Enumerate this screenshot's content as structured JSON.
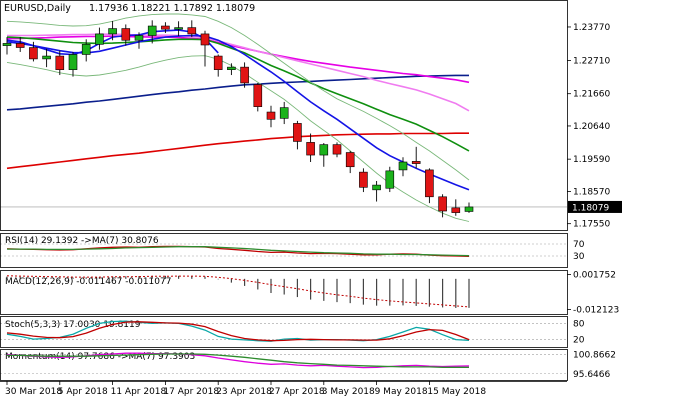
{
  "chart_data": [
    {
      "type": "candlestick",
      "symbol_label": "EURUSD,Daily",
      "ohlc_label": "1.17936 1.18221 1.17892 1.18079",
      "price_tick_labels": [
        "1.23770",
        "1.22710",
        "1.21660",
        "1.20640",
        "1.19590",
        "1.18570",
        "1.17550"
      ],
      "price_ticks": [
        1.2377,
        1.2271,
        1.2166,
        1.2064,
        1.1959,
        1.1857,
        1.1755
      ],
      "current_price_label": "1.18079",
      "current_price": 1.18079,
      "ylim": [
        1.1735,
        1.2418
      ],
      "date_labels": [
        "30 Mar 2018",
        "5 Apr 2018",
        "11 Apr 2018",
        "17 Apr 2018",
        "23 Apr 2018",
        "27 Apr 2018",
        "3 May 2018",
        "9 May 2018",
        "15 May 2018"
      ],
      "date_label_bar_index": [
        0,
        4,
        8,
        12,
        16,
        20,
        24,
        28,
        32
      ],
      "candles": [
        {
          "o": 1.2318,
          "h": 1.2345,
          "l": 1.229,
          "c": 1.2325
        },
        {
          "o": 1.2325,
          "h": 1.2345,
          "l": 1.2298,
          "c": 1.2312
        },
        {
          "o": 1.2312,
          "h": 1.233,
          "l": 1.2268,
          "c": 1.2276
        },
        {
          "o": 1.2276,
          "h": 1.2308,
          "l": 1.225,
          "c": 1.2285
        },
        {
          "o": 1.2285,
          "h": 1.2302,
          "l": 1.2225,
          "c": 1.2242
        },
        {
          "o": 1.2242,
          "h": 1.2298,
          "l": 1.222,
          "c": 1.229
        },
        {
          "o": 1.229,
          "h": 1.2338,
          "l": 1.2268,
          "c": 1.2322
        },
        {
          "o": 1.2322,
          "h": 1.2375,
          "l": 1.2305,
          "c": 1.2355
        },
        {
          "o": 1.2355,
          "h": 1.2396,
          "l": 1.2335,
          "c": 1.2372
        },
        {
          "o": 1.2372,
          "h": 1.2385,
          "l": 1.2318,
          "c": 1.2335
        },
        {
          "o": 1.2335,
          "h": 1.236,
          "l": 1.2308,
          "c": 1.235
        },
        {
          "o": 1.235,
          "h": 1.2398,
          "l": 1.2325,
          "c": 1.238
        },
        {
          "o": 1.238,
          "h": 1.2392,
          "l": 1.2358,
          "c": 1.237
        },
        {
          "o": 1.237,
          "h": 1.2395,
          "l": 1.2348,
          "c": 1.2375
        },
        {
          "o": 1.2375,
          "h": 1.2398,
          "l": 1.2345,
          "c": 1.2355
        },
        {
          "o": 1.2355,
          "h": 1.2365,
          "l": 1.2252,
          "c": 1.232
        },
        {
          "o": 1.2285,
          "h": 1.229,
          "l": 1.222,
          "c": 1.2242
        },
        {
          "o": 1.2242,
          "h": 1.2262,
          "l": 1.2225,
          "c": 1.225
        },
        {
          "o": 1.225,
          "h": 1.2265,
          "l": 1.2185,
          "c": 1.22
        },
        {
          "o": 1.2195,
          "h": 1.22,
          "l": 1.211,
          "c": 1.2125
        },
        {
          "o": 1.2108,
          "h": 1.2128,
          "l": 1.206,
          "c": 1.2085
        },
        {
          "o": 1.2088,
          "h": 1.214,
          "l": 1.207,
          "c": 1.2122
        },
        {
          "o": 1.2072,
          "h": 1.208,
          "l": 1.199,
          "c": 1.2015
        },
        {
          "o": 1.2012,
          "h": 1.204,
          "l": 1.195,
          "c": 1.1972
        },
        {
          "o": 1.1972,
          "h": 1.201,
          "l": 1.1935,
          "c": 1.2005
        },
        {
          "o": 1.2005,
          "h": 1.2012,
          "l": 1.1965,
          "c": 1.1975
        },
        {
          "o": 1.198,
          "h": 1.1985,
          "l": 1.1915,
          "c": 1.1935
        },
        {
          "o": 1.1918,
          "h": 1.193,
          "l": 1.1855,
          "c": 1.187
        },
        {
          "o": 1.1862,
          "h": 1.189,
          "l": 1.1825,
          "c": 1.1877
        },
        {
          "o": 1.1867,
          "h": 1.1935,
          "l": 1.1855,
          "c": 1.1922
        },
        {
          "o": 1.1925,
          "h": 1.1965,
          "l": 1.1905,
          "c": 1.195
        },
        {
          "o": 1.1952,
          "h": 1.1998,
          "l": 1.193,
          "c": 1.1945
        },
        {
          "o": 1.1925,
          "h": 1.193,
          "l": 1.182,
          "c": 1.184
        },
        {
          "o": 1.184,
          "h": 1.1848,
          "l": 1.1775,
          "c": 1.1795
        },
        {
          "o": 1.1805,
          "h": 1.1832,
          "l": 1.178,
          "c": 1.179
        },
        {
          "o": 1.17936,
          "h": 1.18221,
          "l": 1.17892,
          "c": 1.18079
        }
      ],
      "overlays": [
        {
          "color": "#0a1e8c",
          "values": [
            1.2115,
            1.2118,
            1.2122,
            1.2126,
            1.213,
            1.2134,
            1.2139,
            1.2143,
            1.2148,
            1.2153,
            1.2158,
            1.2163,
            1.2168,
            1.2172,
            1.2177,
            1.2181,
            1.2186,
            1.219,
            1.2194,
            1.2196,
            1.2199,
            1.2201,
            1.2203,
            1.2205,
            1.2207,
            1.2209,
            1.2211,
            1.2213,
            1.2215,
            1.2217,
            1.2219,
            1.2221,
            1.2222,
            1.2223,
            1.2224,
            1.2224
          ]
        },
        {
          "color": "#dd0000",
          "values": [
            1.193,
            1.1935,
            1.194,
            1.1945,
            1.195,
            1.1955,
            1.196,
            1.1965,
            1.197,
            1.1974,
            1.1978,
            1.1983,
            1.1988,
            1.1993,
            1.1998,
            1.2003,
            1.2008,
            1.2012,
            1.2016,
            1.202,
            1.2024,
            1.2027,
            1.203,
            1.2032,
            1.2034,
            1.2036,
            1.2037,
            1.2038,
            1.2039,
            1.2039,
            1.204,
            1.204,
            1.204,
            1.204,
            1.2041,
            1.2041
          ]
        },
        {
          "color": "#e600e6",
          "values": [
            1.234,
            1.2341,
            1.2342,
            1.2343,
            1.2345,
            1.2346,
            1.2347,
            1.2347,
            1.2348,
            1.2347,
            1.2346,
            1.2345,
            1.2345,
            1.2344,
            1.2341,
            1.2338,
            1.2328,
            1.2318,
            1.2309,
            1.23,
            1.2291,
            1.2283,
            1.2275,
            1.2268,
            1.2262,
            1.2256,
            1.225,
            1.2245,
            1.224,
            1.2235,
            1.223,
            1.2226,
            1.222,
            1.2215,
            1.221,
            1.2202
          ]
        },
        {
          "color": "#f07cf0",
          "values": [
            1.235,
            1.235,
            1.235,
            1.2351,
            1.2352,
            1.2353,
            1.2353,
            1.2354,
            1.2354,
            1.2353,
            1.2352,
            1.2351,
            1.2351,
            1.235,
            1.2347,
            1.2343,
            1.2333,
            1.2322,
            1.2311,
            1.23,
            1.229,
            1.228,
            1.227,
            1.226,
            1.225,
            1.224,
            1.223,
            1.222,
            1.2208,
            1.2198,
            1.2188,
            1.2178,
            1.2165,
            1.215,
            1.2135,
            1.2112
          ]
        },
        {
          "color": "#0f8f0f",
          "values": [
            1.2345,
            1.2343,
            1.234,
            1.2336,
            1.2332,
            1.2328,
            1.2326,
            1.2325,
            1.2326,
            1.2328,
            1.233,
            1.2333,
            1.2336,
            1.2338,
            1.2338,
            1.2337,
            1.2325,
            1.231,
            1.2295,
            1.2275,
            1.2255,
            1.2238,
            1.222,
            1.22,
            1.2182,
            1.2166,
            1.215,
            1.2134,
            1.2117,
            1.21,
            1.2085,
            1.207,
            1.205,
            1.203,
            1.2008,
            1.1985
          ]
        },
        {
          "color": "#1414e6",
          "values": [
            1.233,
            1.2325,
            1.2318,
            1.231,
            1.2302,
            1.2296,
            1.2295,
            1.23,
            1.231,
            1.232,
            1.233,
            1.2338,
            1.2345,
            1.2348,
            1.235,
            1.2348,
            1.2335,
            1.2315,
            1.229,
            1.2262,
            1.2235,
            1.2205,
            1.2172,
            1.214,
            1.2112,
            1.2085,
            1.2055,
            1.2025,
            1.1995,
            1.197,
            1.195,
            1.193,
            1.1912,
            1.1895,
            1.1878,
            1.1862
          ]
        },
        {
          "color": "#7ab87a",
          "values": [
            1.2395,
            1.2393,
            1.239,
            1.2386,
            1.2382,
            1.238,
            1.2381,
            1.2386,
            1.2395,
            1.2405,
            1.2412,
            1.2416,
            1.2418,
            1.2418,
            1.2415,
            1.241,
            1.2395,
            1.2375,
            1.235,
            1.2322,
            1.2292,
            1.2262,
            1.2232,
            1.2202,
            1.2175,
            1.215,
            1.213,
            1.211,
            1.2088,
            1.2065,
            1.204,
            1.2012,
            1.1985,
            1.1955,
            1.1925,
            1.1893
          ]
        },
        {
          "color": "#7ab87a",
          "values": [
            1.2265,
            1.2258,
            1.225,
            1.2242,
            1.2232,
            1.2225,
            1.2222,
            1.2225,
            1.2232,
            1.224,
            1.225,
            1.2262,
            1.2272,
            1.228,
            1.2285,
            1.2286,
            1.2275,
            1.2255,
            1.223,
            1.2202,
            1.2175,
            1.2148,
            1.2115,
            1.208,
            1.205,
            1.202,
            1.1985,
            1.195,
            1.1915,
            1.1882,
            1.1855,
            1.183,
            1.1808,
            1.1788,
            1.1772,
            1.1762
          ]
        },
        {
          "color": "#1414e6",
          "values": [
            1.2335,
            1.233,
            1.2318,
            1.2305,
            1.2292,
            1.229,
            1.2302,
            1.2325,
            1.2345,
            1.235,
            1.2352,
            1.2362,
            1.2365,
            1.2367,
            1.2361,
            1.234,
            1.2295
          ]
        }
      ]
    },
    {
      "type": "line",
      "label_text": "RSI(14) 29.1392 ->MA(7) 30.8076",
      "tick_labels": [
        "70",
        "30"
      ],
      "ticks": [
        70,
        30
      ],
      "ylim": [
        0,
        100
      ],
      "series": [
        {
          "color": "#c00000",
          "values": [
            54,
            53,
            52,
            51,
            50,
            51,
            54,
            57,
            59,
            60,
            59,
            61,
            62,
            62,
            61,
            60,
            55,
            52,
            49,
            45,
            42,
            43,
            40,
            38,
            39,
            38,
            36,
            34,
            34,
            36,
            37,
            36,
            33,
            31,
            30,
            29
          ]
        },
        {
          "color": "#2e8b2e",
          "values": [
            53,
            53,
            53,
            52,
            52,
            52,
            53,
            54,
            55,
            57,
            58,
            59,
            60,
            61,
            61,
            61,
            59,
            57,
            55,
            52,
            49,
            47,
            45,
            43,
            41,
            40,
            39,
            37,
            36,
            36,
            35,
            35,
            34,
            33,
            32,
            31
          ]
        }
      ]
    },
    {
      "type": "bar",
      "label_text": "MACD(12,26,9) -0.011467 -0.011077",
      "tick_labels": [
        "0.001752",
        "-0.012123"
      ],
      "ticks": [
        0.001752,
        -0.012123
      ],
      "ylim": [
        -0.0131,
        0.0027
      ],
      "series": [
        {
          "color": "#444444",
          "values": [
            0.0009,
            0.0008,
            0.0007,
            0.0006,
            0.0005,
            0.0005,
            0.0006,
            0.0007,
            0.0009,
            0.001,
            0.0011,
            0.0012,
            0.0012,
            0.0012,
            0.0011,
            0.0009,
            -0.0002,
            -0.0015,
            -0.0028,
            -0.0042,
            -0.0056,
            -0.0062,
            -0.0072,
            -0.0082,
            -0.0087,
            -0.0092,
            -0.0096,
            -0.0102,
            -0.0106,
            -0.0106,
            -0.0105,
            -0.0107,
            -0.011,
            -0.0113,
            -0.0115,
            -0.01147
          ]
        },
        {
          "color": "#c00000",
          "values": [
            0.0012,
            0.0011,
            0.001,
            0.0009,
            0.0008,
            0.0007,
            0.0007,
            0.0007,
            0.0008,
            0.0008,
            0.0009,
            0.001,
            0.001,
            0.0011,
            0.0011,
            0.001,
            0.0006,
            0.0001,
            -0.0006,
            -0.0014,
            -0.0023,
            -0.0031,
            -0.0039,
            -0.0048,
            -0.0056,
            -0.0063,
            -0.0069,
            -0.0076,
            -0.0082,
            -0.0087,
            -0.0091,
            -0.0095,
            -0.0099,
            -0.0103,
            -0.0107,
            -0.011077
          ]
        }
      ]
    },
    {
      "type": "line",
      "label_text": "Stoch(5,3,3) 17.0030 19.8119",
      "tick_labels": [
        "80",
        "20"
      ],
      "ticks": [
        80,
        20
      ],
      "ylim": [
        0,
        100
      ],
      "series": [
        {
          "color": "#0aa7a7",
          "values": [
            40,
            32,
            22,
            24,
            28,
            40,
            62,
            80,
            87,
            88,
            84,
            80,
            82,
            80,
            70,
            55,
            32,
            22,
            19,
            16,
            14,
            22,
            24,
            18,
            20,
            20,
            18,
            16,
            20,
            32,
            48,
            65,
            58,
            38,
            20,
            17
          ]
        },
        {
          "color": "#c00000",
          "values": [
            45,
            40,
            33,
            28,
            27,
            31,
            44,
            62,
            76,
            85,
            86,
            84,
            82,
            81,
            77,
            68,
            50,
            35,
            24,
            19,
            16,
            17,
            20,
            21,
            20,
            19,
            19,
            18,
            18,
            23,
            34,
            48,
            57,
            54,
            39,
            20
          ]
        }
      ]
    },
    {
      "type": "line",
      "label_text": "Momentum(14) 97.7686 ->MA(7) 97.3903",
      "tick_labels": [
        "100.8662",
        "95.6466"
      ],
      "ticks": [
        100.8662,
        95.6466
      ],
      "ylim": [
        94.5,
        101.8
      ],
      "series": [
        {
          "color": "#dd00dd",
          "values": [
            100.8,
            100.6,
            100.4,
            100.2,
            100.1,
            100.2,
            100.5,
            100.8,
            101.0,
            101.2,
            101.2,
            101.1,
            101.1,
            101.0,
            100.8,
            100.5,
            99.9,
            99.4,
            98.9,
            98.5,
            98.2,
            98.3,
            98.0,
            97.8,
            97.9,
            97.7,
            97.5,
            97.3,
            97.4,
            97.6,
            97.8,
            97.9,
            97.7,
            97.6,
            97.7,
            97.7686
          ]
        },
        {
          "color": "#2e8b2e",
          "values": [
            100.6,
            100.6,
            100.5,
            100.4,
            100.4,
            100.4,
            100.4,
            100.5,
            100.6,
            100.7,
            100.8,
            100.9,
            101.0,
            101.0,
            101.0,
            100.9,
            100.7,
            100.4,
            100.1,
            99.7,
            99.3,
            98.9,
            98.6,
            98.4,
            98.2,
            98.0,
            97.9,
            97.8,
            97.7,
            97.6,
            97.5,
            97.5,
            97.5,
            97.4,
            97.4,
            97.3903
          ]
        }
      ]
    }
  ]
}
